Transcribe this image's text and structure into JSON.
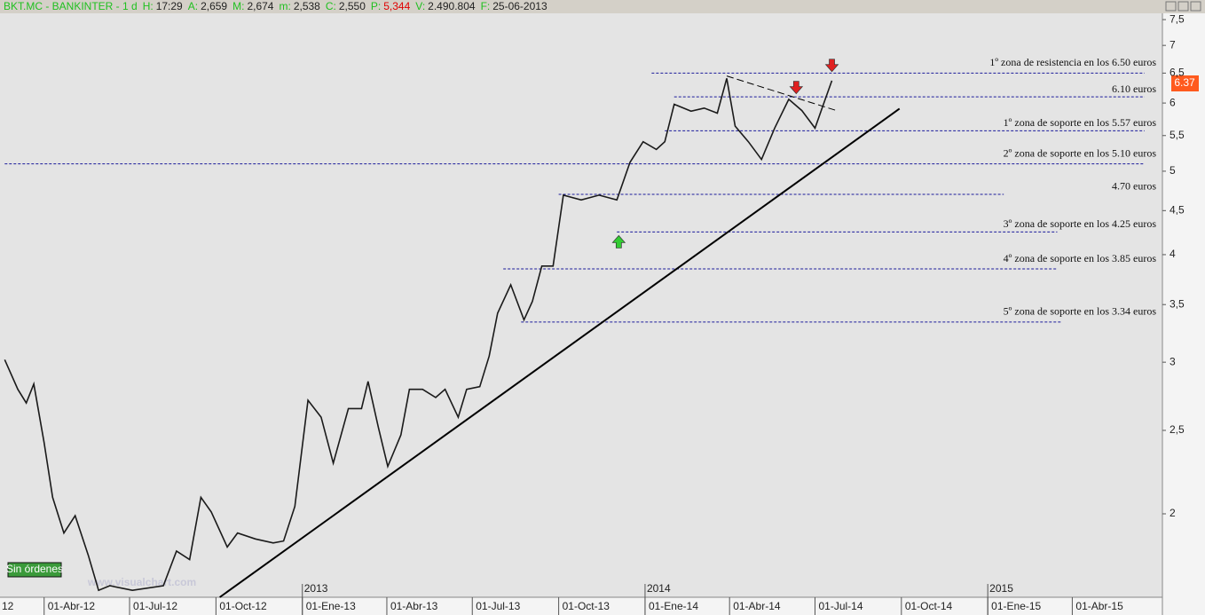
{
  "chart_data": {
    "type": "line",
    "header": {
      "symbol": "BKT.MC - BANKINTER - 1 d",
      "fields": [
        {
          "key": "H:",
          "value": "17:29"
        },
        {
          "key": "A:",
          "value": "2,659"
        },
        {
          "key": "M:",
          "value": "2,674"
        },
        {
          "key": "m:",
          "value": "2,538"
        },
        {
          "key": "C:",
          "value": "2,550"
        },
        {
          "key": "P:",
          "value": "5,344",
          "color": "#e00000"
        },
        {
          "key": "V:",
          "value": "2.490.804"
        },
        {
          "key": "F:",
          "value": "25-06-2013"
        }
      ]
    },
    "last_price": "6.37",
    "status": "Sin órdenes",
    "watermark": "www.visualchart.com",
    "year_labels": [
      {
        "x": "2012-02-14",
        "label": "12"
      },
      {
        "x": "2013-01-01",
        "label": "2013"
      },
      {
        "x": "2014-01-01",
        "label": "2014"
      },
      {
        "x": "2015-01-01",
        "label": "2015"
      }
    ],
    "log_scale": true,
    "xlim": [
      "2012-02-14",
      "2015-07-06"
    ],
    "xticks": [
      {
        "value": "2012-04-01",
        "label": "01-Abr-12"
      },
      {
        "value": "2012-07-01",
        "label": "01-Jul-12"
      },
      {
        "value": "2012-10-01",
        "label": "01-Oct-12"
      },
      {
        "value": "2013-01-01",
        "label": "01-Ene-13"
      },
      {
        "value": "2013-04-01",
        "label": "01-Abr-13"
      },
      {
        "value": "2013-07-01",
        "label": "01-Jul-13"
      },
      {
        "value": "2013-10-01",
        "label": "01-Oct-13"
      },
      {
        "value": "2014-01-01",
        "label": "01-Ene-14"
      },
      {
        "value": "2014-04-01",
        "label": "01-Abr-14"
      },
      {
        "value": "2014-07-01",
        "label": "01-Jul-14"
      },
      {
        "value": "2014-10-01",
        "label": "01-Oct-14"
      },
      {
        "value": "2015-01-01",
        "label": "01-Ene-15"
      },
      {
        "value": "2015-04-01",
        "label": "01-Abr-15"
      }
    ],
    "ylim": [
      1.6,
      7.7
    ],
    "yticks": [
      2,
      {
        "value": 2.5,
        "label": "2,5"
      },
      3,
      {
        "value": 3.5,
        "label": "3,5"
      },
      4,
      {
        "value": 4.5,
        "label": "4,5"
      },
      5,
      {
        "value": 5.5,
        "label": "5,5"
      },
      6,
      {
        "value": 6.5,
        "label": "6,5"
      },
      7,
      {
        "value": 7.5,
        "label": "7,5"
      }
    ],
    "series": [
      {
        "color": "#1a1a1a",
        "x": [
          "2012-02-19",
          "2012-03-04",
          "2012-03-13",
          "2012-03-21",
          "2012-04-01",
          "2012-04-10",
          "2012-04-22",
          "2012-05-04",
          "2012-05-18",
          "2012-05-29",
          "2012-06-10",
          "2012-07-04",
          "2012-08-06",
          "2012-08-20",
          "2012-09-03",
          "2012-09-15",
          "2012-09-26",
          "2012-10-13",
          "2012-10-24",
          "2012-11-12",
          "2012-12-01",
          "2012-12-12",
          "2012-12-24",
          "2013-01-07",
          "2013-01-21",
          "2013-02-03",
          "2013-02-19",
          "2013-03-05",
          "2013-03-12",
          "2013-03-23",
          "2013-04-02",
          "2013-04-16",
          "2013-04-25",
          "2013-05-09",
          "2013-05-23",
          "2013-06-02",
          "2013-06-16",
          "2013-06-25",
          "2013-07-09",
          "2013-07-19",
          "2013-07-28",
          "2013-08-11",
          "2013-08-25",
          "2013-09-03",
          "2013-09-13",
          "2013-09-25",
          "2013-10-06",
          "2013-10-25",
          "2013-11-13",
          "2013-12-02",
          "2013-12-16",
          "2013-12-30",
          "2014-01-13",
          "2014-01-22",
          "2014-02-01",
          "2014-02-19",
          "2014-03-05",
          "2014-03-19",
          "2014-03-29",
          "2014-04-07",
          "2014-04-21",
          "2014-05-05",
          "2014-05-19",
          "2014-06-03",
          "2014-06-17",
          "2014-07-01",
          "2014-07-10",
          "2014-07-19"
        ],
        "values": [
          3.02,
          2.79,
          2.69,
          2.83,
          2.42,
          2.09,
          1.9,
          1.99,
          1.79,
          1.63,
          1.65,
          1.63,
          1.65,
          1.81,
          1.77,
          2.09,
          2.01,
          1.83,
          1.9,
          1.87,
          1.85,
          1.86,
          2.04,
          2.71,
          2.59,
          2.29,
          2.65,
          2.65,
          2.85,
          2.52,
          2.27,
          2.47,
          2.79,
          2.79,
          2.73,
          2.79,
          2.59,
          2.79,
          2.81,
          3.05,
          3.42,
          3.69,
          3.36,
          3.53,
          3.88,
          3.88,
          4.69,
          4.63,
          4.69,
          4.63,
          5.12,
          5.41,
          5.3,
          5.41,
          5.98,
          5.87,
          5.92,
          5.84,
          6.41,
          5.64,
          5.41,
          5.16,
          5.61,
          6.06,
          5.88,
          5.61,
          5.98,
          6.37
        ]
      }
    ],
    "levels": [
      {
        "value": 6.5,
        "from": "2014-01-08",
        "to": "2015-06-17",
        "text": "1º zona de resistencia en los 6.50 euros",
        "big": true
      },
      {
        "value": 6.1,
        "from": "2014-02-01",
        "to": "2015-06-17",
        "text": "6.10 euros",
        "big": false
      },
      {
        "value": 5.57,
        "from": "2014-01-22",
        "to": "2015-06-17",
        "text": "1º zona de soporte en los 5.57 euros",
        "big": false
      },
      {
        "value": 5.1,
        "from": "2012-02-19",
        "to": "2015-06-17",
        "text": "2º zona de soporte en los 5.10 euros",
        "big": true
      },
      {
        "value": 4.7,
        "from": "2013-10-01",
        "to": "2015-01-18",
        "text": "4.70 euros",
        "big": false
      },
      {
        "value": 4.25,
        "from": "2013-12-02",
        "to": "2015-03-16",
        "text": "3º zona de soporte en los 4.25 euros",
        "big": false
      },
      {
        "value": 3.85,
        "from": "2013-08-03",
        "to": "2015-03-16",
        "text": "4º zona de soporte en los 3.85 euros",
        "big": true
      },
      {
        "value": 3.34,
        "from": "2013-08-22",
        "to": "2015-03-20",
        "text": "5º zona de soporte en los 3.34 euros",
        "big": true
      }
    ],
    "trendlines": [
      {
        "x0": "2012-10-05",
        "y0": 1.6,
        "x1": "2014-09-29",
        "y1": 5.91,
        "dashed": false
      },
      {
        "x0": "2014-03-29",
        "y0": 6.45,
        "x1": "2014-07-24",
        "y1": 5.88,
        "dashed": true
      }
    ],
    "signals": [
      {
        "x": "2013-12-04",
        "y": 4.15,
        "direction": "up",
        "color": "#33cc33"
      },
      {
        "x": "2014-06-11",
        "y": 6.24,
        "direction": "down",
        "color": "#e02020"
      },
      {
        "x": "2014-07-19",
        "y": 6.62,
        "direction": "down",
        "color": "#e02020"
      }
    ]
  }
}
